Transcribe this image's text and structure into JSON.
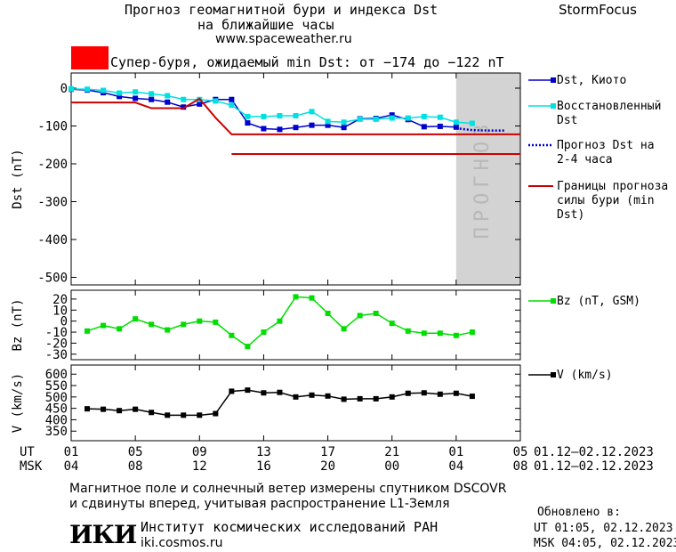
{
  "header": {
    "title_line1": "Прогноз геомагнитной бури и индекса Dst",
    "title_line2": "на ближайшие часы",
    "site": "www.spaceweather.ru",
    "brand": "StormFocus"
  },
  "alarm": {
    "text": "Супер-буря, ожидаемый min Dst: от −174 до −122 nT",
    "color": "#ff0000"
  },
  "footer": {
    "line1": "Магнитное поле и солнечный ветер измерены спутником DSCOVR",
    "line2": "и сдвинуты вперед, учитывая распространение L1-Земля",
    "logo": "ИКИ",
    "institute": "Институт космических исследований РАН",
    "institute_url": "iki.cosmos.ru",
    "updated_title": "Обновлено в:",
    "updated_ut": "UT  01:05, 02.12.2023",
    "updated_msk": "MSK 04:05, 02.12.2023"
  },
  "time_axis": {
    "ut_label": "UT",
    "msk_label": "MSK",
    "range": [
      1,
      29
    ],
    "ticks": [
      1,
      5,
      9,
      13,
      17,
      21,
      25,
      29
    ],
    "ut_ticks": [
      "01",
      "05",
      "09",
      "13",
      "17",
      "21",
      "01",
      "05"
    ],
    "msk_ticks": [
      "04",
      "08",
      "12",
      "16",
      "20",
      "00",
      "04",
      "08"
    ],
    "ut_dates": "01.12–02.12.2023",
    "msk_dates": "01.12–02.12.2023"
  },
  "chart_data": [
    {
      "type": "line",
      "panel": "dst",
      "ylabel": "Dst (nT)",
      "ylim": [
        -520,
        40
      ],
      "yticks": [
        0,
        -100,
        -200,
        -300,
        -400,
        -500
      ],
      "forecast_band": {
        "x": [
          25,
          29
        ],
        "label": "ПРОГНОЗ",
        "color": "#d3d3d3"
      },
      "series": [
        {
          "name": "Dst, Киото",
          "color": "#0000cc",
          "marker": "square",
          "x": [
            1,
            2,
            3,
            4,
            5,
            6,
            7,
            8,
            9,
            10,
            11,
            12,
            13,
            14,
            15,
            16,
            17,
            18,
            19,
            20,
            21,
            22,
            23,
            24,
            25
          ],
          "values": [
            -3,
            -5,
            -12,
            -22,
            -27,
            -30,
            -37,
            -50,
            -42,
            -30,
            -30,
            -92,
            -107,
            -109,
            -104,
            -98,
            -98,
            -104,
            -81,
            -80,
            -71,
            -83,
            -102,
            -101,
            -103
          ]
        },
        {
          "name": "Восстановленный Dst",
          "color": "#00e0e0",
          "marker": "square",
          "x": [
            1,
            2,
            3,
            4,
            5,
            6,
            7,
            8,
            9,
            10,
            11,
            12,
            13,
            14,
            15,
            16,
            17,
            18,
            19,
            20,
            21,
            22,
            23,
            24,
            25,
            26
          ],
          "values": [
            -2,
            -3,
            -6,
            -13,
            -10,
            -15,
            -20,
            -30,
            -30,
            -34,
            -45,
            -75,
            -75,
            -73,
            -73,
            -62,
            -88,
            -90,
            -82,
            -82,
            -79,
            -79,
            -75,
            -77,
            -90,
            -93
          ]
        },
        {
          "name": "Прогноз Dst на 2-4 часа",
          "color": "#0000cc",
          "style": "dotted",
          "x": [
            25,
            26,
            27,
            28
          ],
          "values": [
            -106,
            -111,
            -112,
            -112
          ]
        },
        {
          "name": "Границы прогноза силы бури (min Dst)",
          "color": "#cc0000",
          "style": "step",
          "lines": [
            {
              "x": [
                1,
                5,
                6,
                8,
                9,
                10,
                11,
                29
              ],
              "values": [
                -38,
                -38,
                -53,
                -53,
                -28,
                -78,
                -122,
                -122
              ]
            },
            {
              "x": [
                11,
                29
              ],
              "values": [
                -174,
                -174
              ]
            }
          ]
        }
      ]
    },
    {
      "type": "line",
      "panel": "bz",
      "ylabel": "Bz (nT)",
      "ylim": [
        -35,
        28
      ],
      "yticks": [
        20,
        10,
        0,
        -10,
        -20,
        -30
      ],
      "series": [
        {
          "name": "Bz (nT, GSM)",
          "color": "#00dd00",
          "marker": "square",
          "x": [
            2,
            3,
            4,
            5,
            6,
            7,
            8,
            9,
            10,
            11,
            12,
            13,
            14,
            15,
            16,
            17,
            18,
            19,
            20,
            21,
            22,
            23,
            24,
            25,
            26
          ],
          "values": [
            -9,
            -4,
            -7,
            2,
            -3,
            -8,
            -3,
            0,
            -1,
            -13,
            -23,
            -10,
            0,
            22,
            21,
            7,
            -7,
            5,
            7,
            -2,
            -9,
            -11,
            -11,
            -13,
            -10
          ]
        }
      ]
    },
    {
      "type": "line",
      "panel": "v",
      "ylabel": "V (km/s)",
      "ylim": [
        308,
        640
      ],
      "yticks": [
        600,
        550,
        500,
        450,
        400,
        350
      ],
      "series": [
        {
          "name": "V (km/s)",
          "color": "#000000",
          "marker": "square",
          "x": [
            2,
            3,
            4,
            5,
            6,
            7,
            8,
            9,
            10,
            11,
            12,
            13,
            14,
            15,
            16,
            17,
            18,
            19,
            20,
            21,
            22,
            23,
            24,
            25,
            26
          ],
          "values": [
            448,
            446,
            440,
            446,
            432,
            420,
            420,
            420,
            427,
            525,
            530,
            518,
            520,
            500,
            508,
            504,
            490,
            492,
            492,
            500,
            516,
            518,
            512,
            516,
            503
          ]
        }
      ]
    }
  ]
}
